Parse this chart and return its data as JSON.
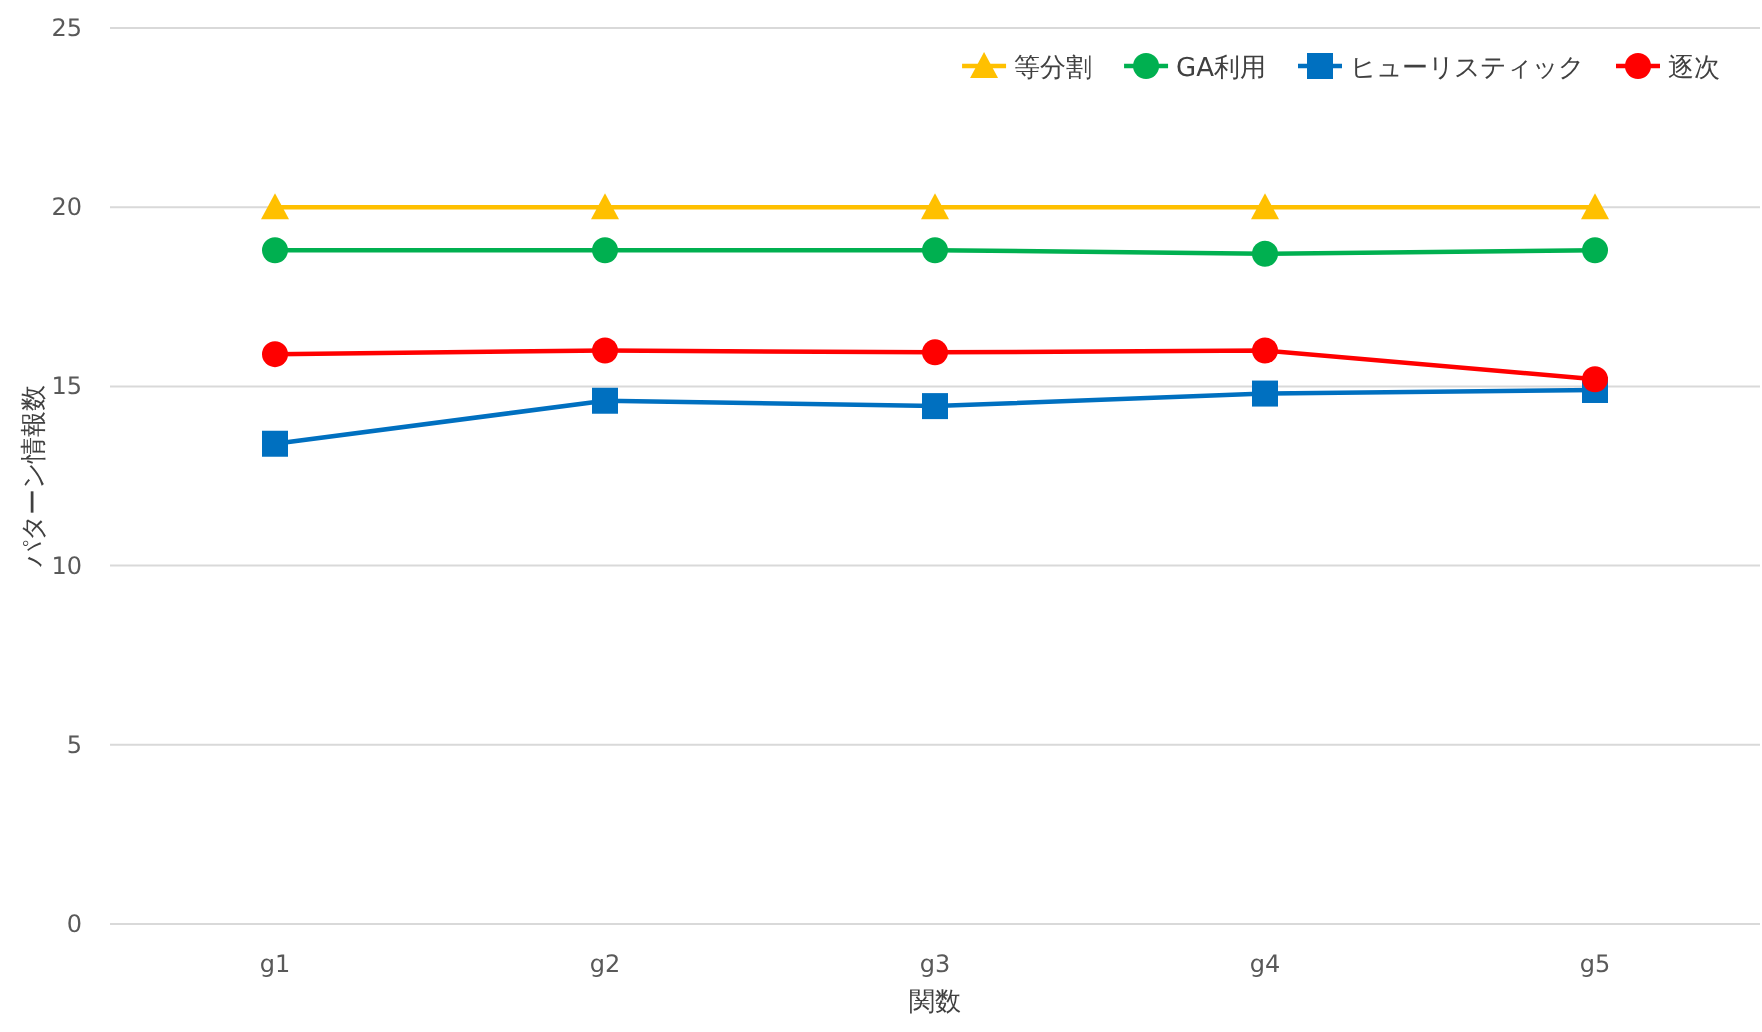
{
  "chart_data": {
    "type": "line",
    "xlabel": "関数",
    "ylabel": "パターン情報数",
    "categories": [
      "g1",
      "g2",
      "g3",
      "g4",
      "g5"
    ],
    "series": [
      {
        "name": "等分割",
        "color": "#ffc000",
        "marker": "triangle",
        "values": [
          20,
          20,
          20,
          20,
          20
        ]
      },
      {
        "name": "GA利用",
        "color": "#00b050",
        "marker": "circle",
        "values": [
          18.8,
          18.8,
          18.8,
          18.7,
          18.8
        ]
      },
      {
        "name": "ヒューリスティック",
        "color": "#0070c0",
        "marker": "square",
        "values": [
          13.4,
          14.6,
          14.45,
          14.8,
          14.9
        ]
      },
      {
        "name": "逐次",
        "color": "#ff0000",
        "marker": "circle",
        "values": [
          15.9,
          16.0,
          15.95,
          16.0,
          15.2
        ]
      }
    ],
    "ylim": [
      0,
      25
    ],
    "yticks": [
      0,
      5,
      10,
      15,
      20,
      25
    ],
    "grid": "y",
    "legend": "top right",
    "line_style": "solid"
  }
}
